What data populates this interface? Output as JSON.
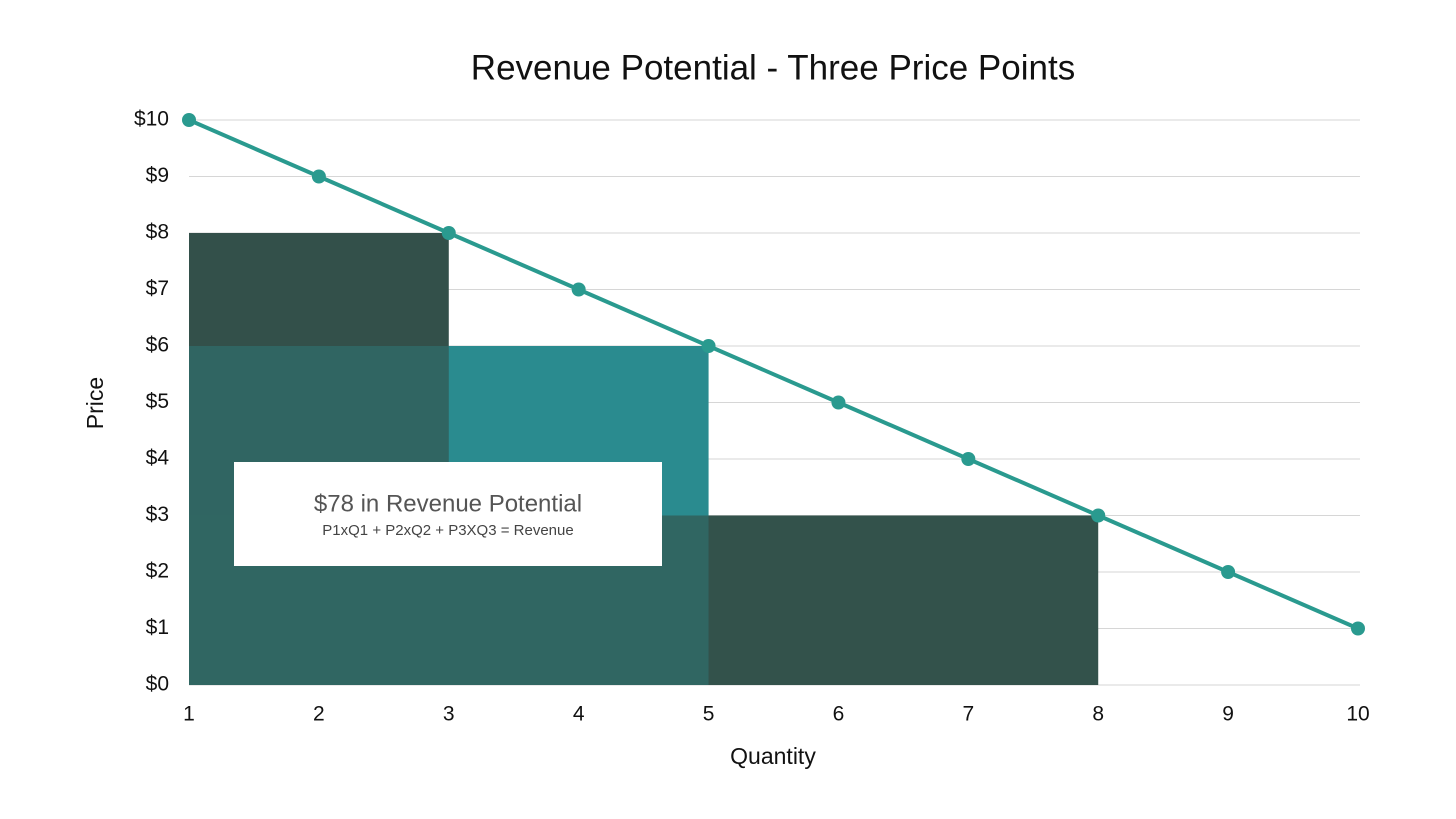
{
  "chart_data": {
    "type": "line",
    "title": "Revenue Potential - Three Price Points",
    "xlabel": "Quantity",
    "ylabel": "Price",
    "x": [
      1,
      2,
      3,
      4,
      5,
      6,
      7,
      8,
      9,
      10
    ],
    "series": [
      {
        "name": "Price",
        "color": "#2a9a8f",
        "values": [
          10,
          9,
          8,
          7,
          6,
          5,
          4,
          3,
          2,
          1
        ]
      }
    ],
    "rectangles": [
      {
        "quantity": 3,
        "price": 8,
        "color": "#33504a"
      },
      {
        "quantity": 5,
        "price": 6,
        "color": "#2a8b8f"
      },
      {
        "quantity": 8,
        "price": 3,
        "color": "#33524b"
      }
    ],
    "annotation": {
      "title": "$78 in Revenue Potential",
      "subtitle": "P1xQ1 + P2xQ2 + P3XQ3 = Revenue"
    },
    "xlim": [
      1,
      10
    ],
    "ylim": [
      0,
      10
    ],
    "xticks": [
      1,
      2,
      3,
      4,
      5,
      6,
      7,
      8,
      9,
      10
    ],
    "yticks": [
      {
        "value": 0,
        "label": "$0"
      },
      {
        "value": 1,
        "label": "$1"
      },
      {
        "value": 2,
        "label": "$2"
      },
      {
        "value": 3,
        "label": "$3"
      },
      {
        "value": 4,
        "label": "$4"
      },
      {
        "value": 5,
        "label": "$5"
      },
      {
        "value": 6,
        "label": "$6"
      },
      {
        "value": 7,
        "label": "$7"
      },
      {
        "value": 8,
        "label": "$8"
      },
      {
        "value": 9,
        "label": "$9"
      },
      {
        "value": 10,
        "label": "$10"
      }
    ],
    "grid": true
  }
}
